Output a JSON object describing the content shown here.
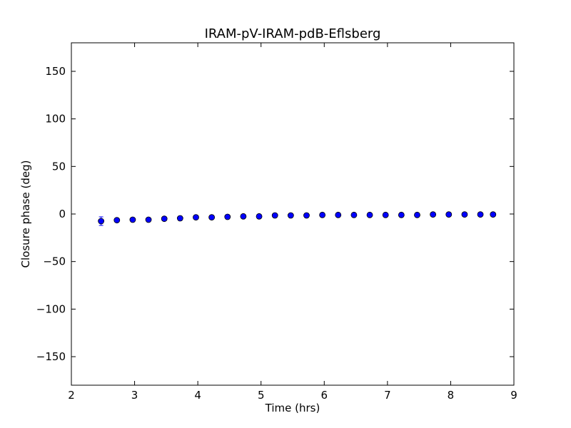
{
  "chart_data": {
    "type": "scatter",
    "title": "IRAM-pV-IRAM-pdB-Eflsberg",
    "xlabel": "Time (hrs)",
    "ylabel": "Closure phase (deg)",
    "xlim": [
      2,
      9
    ],
    "ylim": [
      -180,
      180
    ],
    "x_ticks": [
      2,
      3,
      4,
      5,
      6,
      7,
      8,
      9
    ],
    "y_ticks": [
      -150,
      -100,
      -50,
      0,
      50,
      100,
      150
    ],
    "x_tick_labels": [
      "2",
      "3",
      "4",
      "5",
      "6",
      "7",
      "8",
      "9"
    ],
    "y_tick_labels": [
      "−150",
      "−100",
      "−50",
      "0",
      "50",
      "100",
      "150"
    ],
    "grid": false,
    "marker_color": "#0000ff",
    "points": [
      {
        "x": 2.47,
        "y": -7.5,
        "err": 4.5
      },
      {
        "x": 2.72,
        "y": -6.5,
        "err": 2.0
      },
      {
        "x": 2.97,
        "y": -6.0,
        "err": 2.0
      },
      {
        "x": 3.22,
        "y": -6.0,
        "err": 2.0
      },
      {
        "x": 3.47,
        "y": -5.0,
        "err": 2.0
      },
      {
        "x": 3.72,
        "y": -4.5,
        "err": 2.0
      },
      {
        "x": 3.97,
        "y": -3.5,
        "err": 2.0
      },
      {
        "x": 4.22,
        "y": -3.5,
        "err": 2.0
      },
      {
        "x": 4.47,
        "y": -3.0,
        "err": 2.0
      },
      {
        "x": 4.72,
        "y": -2.5,
        "err": 2.0
      },
      {
        "x": 4.97,
        "y": -2.5,
        "err": 2.0
      },
      {
        "x": 5.22,
        "y": -1.5,
        "err": 2.0
      },
      {
        "x": 5.47,
        "y": -1.5,
        "err": 2.0
      },
      {
        "x": 5.72,
        "y": -1.5,
        "err": 2.0
      },
      {
        "x": 5.97,
        "y": -1.0,
        "err": 2.0
      },
      {
        "x": 6.22,
        "y": -1.0,
        "err": 2.0
      },
      {
        "x": 6.47,
        "y": -1.0,
        "err": 2.0
      },
      {
        "x": 6.72,
        "y": -1.0,
        "err": 2.0
      },
      {
        "x": 6.97,
        "y": -1.0,
        "err": 2.0
      },
      {
        "x": 7.22,
        "y": -1.0,
        "err": 2.0
      },
      {
        "x": 7.47,
        "y": -1.0,
        "err": 2.0
      },
      {
        "x": 7.72,
        "y": -0.5,
        "err": 2.0
      },
      {
        "x": 7.97,
        "y": -0.5,
        "err": 2.0
      },
      {
        "x": 8.22,
        "y": -0.5,
        "err": 2.0
      },
      {
        "x": 8.47,
        "y": -0.5,
        "err": 2.0
      },
      {
        "x": 8.67,
        "y": -0.5,
        "err": 2.0
      }
    ]
  }
}
